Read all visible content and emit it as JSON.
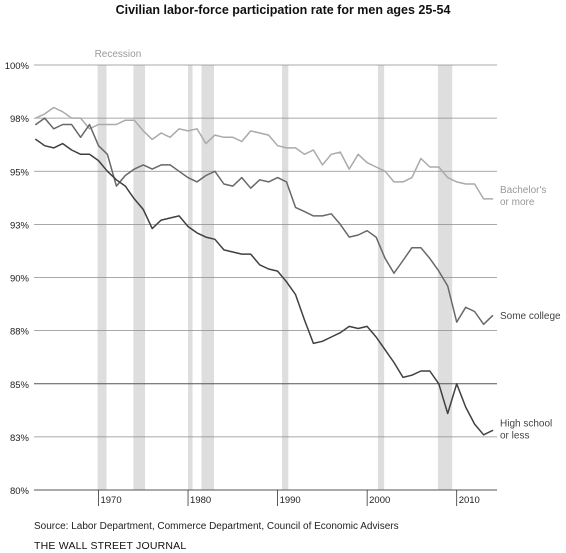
{
  "chart_data": {
    "type": "line",
    "title": "Civilian labor-force participation rate for men ages 25-54",
    "xlabel": "",
    "ylabel": "",
    "xlim": [
      1962.8,
      2014.5
    ],
    "ylim": [
      80,
      100
    ],
    "y_ticks": [
      {
        "value": 100,
        "label": "100%"
      },
      {
        "value": 97.5,
        "label": "98%"
      },
      {
        "value": 95,
        "label": "95%"
      },
      {
        "value": 92.5,
        "label": "93%"
      },
      {
        "value": 90,
        "label": "90%"
      },
      {
        "value": 87.5,
        "label": "88%"
      },
      {
        "value": 85,
        "label": "85%"
      },
      {
        "value": 82.5,
        "label": "83%"
      },
      {
        "value": 80,
        "label": "80%"
      }
    ],
    "x_ticks": [
      {
        "value": 1970,
        "label": "1970"
      },
      {
        "value": 1980,
        "label": "1980"
      },
      {
        "value": 1990,
        "label": "1990"
      },
      {
        "value": 2000,
        "label": "2000"
      },
      {
        "value": 2010,
        "label": "2010"
      }
    ],
    "grid": "horizontal",
    "recession_label": "Recession",
    "recessions": [
      [
        1969.9,
        1970.9
      ],
      [
        1973.9,
        1975.2
      ],
      [
        1980.0,
        1980.5
      ],
      [
        1981.5,
        1982.9
      ],
      [
        1990.5,
        1991.2
      ],
      [
        2001.2,
        2001.9
      ],
      [
        2007.9,
        2009.5
      ]
    ],
    "series": [
      {
        "name": "Bachelor's or more",
        "label_lines": [
          "Bachelor's",
          "or more"
        ],
        "color": "#aaaaaa",
        "x": [
          1963,
          1964,
          1965,
          1966,
          1967,
          1968,
          1969,
          1970,
          1971,
          1972,
          1973,
          1974,
          1975,
          1976,
          1977,
          1978,
          1979,
          1980,
          1981,
          1982,
          1983,
          1984,
          1985,
          1986,
          1987,
          1988,
          1989,
          1990,
          1991,
          1992,
          1993,
          1994,
          1995,
          1996,
          1997,
          1998,
          1999,
          2000,
          2001,
          2002,
          2003,
          2004,
          2005,
          2006,
          2007,
          2008,
          2009,
          2010,
          2011,
          2012,
          2013,
          2014
        ],
        "values": [
          97.5,
          97.7,
          98.0,
          97.8,
          97.5,
          97.5,
          97.0,
          97.2,
          97.2,
          97.2,
          97.4,
          97.4,
          96.9,
          96.5,
          96.8,
          96.6,
          97.0,
          96.9,
          97.0,
          96.3,
          96.7,
          96.6,
          96.6,
          96.4,
          96.9,
          96.8,
          96.7,
          96.2,
          96.1,
          96.1,
          95.8,
          96.0,
          95.3,
          95.8,
          95.9,
          95.1,
          95.8,
          95.4,
          95.2,
          95.0,
          94.5,
          94.5,
          94.7,
          95.6,
          95.2,
          95.2,
          94.7,
          94.5,
          94.4,
          94.4,
          93.7,
          93.7
        ]
      },
      {
        "name": "Some college",
        "label_lines": [
          "Some college"
        ],
        "color": "#686868",
        "x": [
          1963,
          1964,
          1965,
          1966,
          1967,
          1968,
          1969,
          1970,
          1971,
          1972,
          1973,
          1974,
          1975,
          1976,
          1977,
          1978,
          1979,
          1980,
          1981,
          1982,
          1983,
          1984,
          1985,
          1986,
          1987,
          1988,
          1989,
          1990,
          1991,
          1992,
          1993,
          1994,
          1995,
          1996,
          1997,
          1998,
          1999,
          2000,
          2001,
          2002,
          2003,
          2004,
          2005,
          2006,
          2007,
          2008,
          2009,
          2010,
          2011,
          2012,
          2013,
          2014
        ],
        "values": [
          97.2,
          97.5,
          97.0,
          97.2,
          97.2,
          96.6,
          97.2,
          96.2,
          95.8,
          94.3,
          94.8,
          95.1,
          95.3,
          95.1,
          95.3,
          95.3,
          95.0,
          94.7,
          94.5,
          94.8,
          95.0,
          94.4,
          94.3,
          94.7,
          94.2,
          94.6,
          94.5,
          94.7,
          94.5,
          93.3,
          93.1,
          92.9,
          92.9,
          93.0,
          92.5,
          91.9,
          92.0,
          92.2,
          91.9,
          90.9,
          90.2,
          90.8,
          91.4,
          91.4,
          90.9,
          90.3,
          89.6,
          87.9,
          88.6,
          88.4,
          87.8,
          88.2
        ]
      },
      {
        "name": "High school or less",
        "label_lines": [
          "High school",
          "or less"
        ],
        "color": "#404040",
        "x": [
          1963,
          1964,
          1965,
          1966,
          1967,
          1968,
          1969,
          1970,
          1971,
          1972,
          1973,
          1974,
          1975,
          1976,
          1977,
          1978,
          1979,
          1980,
          1981,
          1982,
          1983,
          1984,
          1985,
          1986,
          1987,
          1988,
          1989,
          1990,
          1991,
          1992,
          1993,
          1994,
          1995,
          1996,
          1997,
          1998,
          1999,
          2000,
          2001,
          2002,
          2003,
          2004,
          2005,
          2006,
          2007,
          2008,
          2009,
          2010,
          2011,
          2012,
          2013,
          2014
        ],
        "values": [
          96.5,
          96.2,
          96.1,
          96.3,
          96.0,
          95.8,
          95.8,
          95.5,
          95.0,
          94.6,
          94.3,
          93.7,
          93.2,
          92.3,
          92.7,
          92.8,
          92.9,
          92.4,
          92.1,
          91.9,
          91.8,
          91.3,
          91.2,
          91.1,
          91.1,
          90.6,
          90.4,
          90.3,
          89.8,
          89.2,
          88.0,
          86.9,
          87.0,
          87.2,
          87.4,
          87.7,
          87.6,
          87.7,
          87.2,
          86.6,
          86.0,
          85.3,
          85.4,
          85.6,
          85.6,
          85.0,
          83.6,
          85.0,
          83.9,
          83.1,
          82.6,
          82.8
        ]
      }
    ]
  },
  "source": "Source: Labor Department, Commerce Department, Council of Economic Advisers",
  "publisher": "THE WALL STREET JOURNAL"
}
